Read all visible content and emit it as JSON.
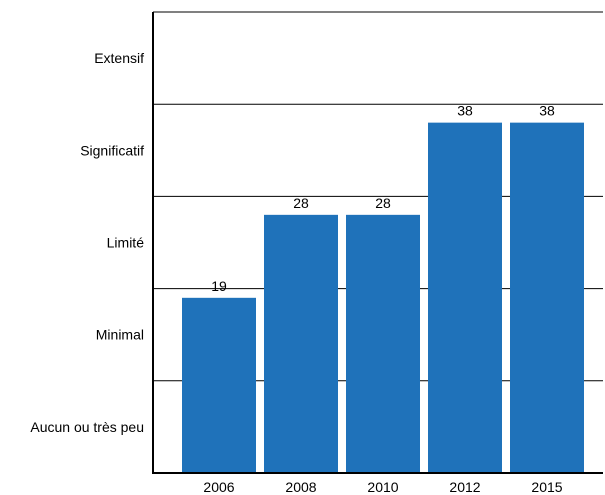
{
  "chart_data": {
    "type": "bar",
    "title": "",
    "xlabel": "",
    "ylabel": "",
    "categories": [
      "2006",
      "2008",
      "2010",
      "2012",
      "2015"
    ],
    "values": [
      19,
      28,
      28,
      38,
      38
    ],
    "data_labels": [
      "19",
      "28",
      "28",
      "38",
      "38"
    ],
    "ylim": [
      0,
      50
    ],
    "y_bands": [
      "Aucun ou très peu",
      "Minimal",
      "Limité",
      "Significatif",
      "Extensif"
    ],
    "y_band_size": 10,
    "bar_color": "#1F72BA",
    "grid": true,
    "legend": "none"
  }
}
